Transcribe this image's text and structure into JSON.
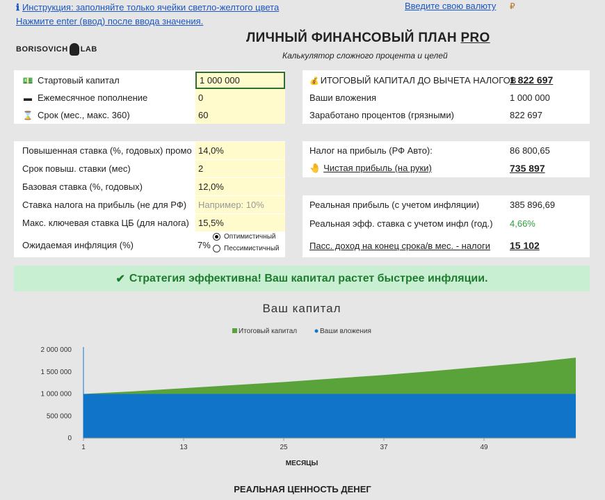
{
  "top_links": {
    "instruction": "Инструкция: заполняйте только ячейки светло-желтого цвета",
    "enter_hint": "Нажмите enter (ввод) после ввода значения.",
    "currency_link": "Введите свою валюту",
    "currency_symbol": "₽"
  },
  "logo": {
    "text_left": "BORISOVICH",
    "text_right": "LAB"
  },
  "header": {
    "title_main": "ЛИЧНЫЙ ФИНАНСОВЫЙ ПЛАН ",
    "title_pro": "PRO",
    "subtitle": "Калькулятор сложного процента и целей"
  },
  "inputs_top": [
    {
      "label": "Стартовый капитал",
      "value": "1 000 000",
      "icon": "money-icon"
    },
    {
      "label": "Ежемесячное пополнение",
      "value": "0",
      "icon": "card-icon"
    },
    {
      "label": "Срок (мес., макс. 360)",
      "value": "60",
      "icon": "hourglass-icon"
    }
  ],
  "inputs_mid": [
    {
      "label": "Повышенная ставка (%, годовых) промо",
      "value": "14,0%"
    },
    {
      "label": "Срок повыш. ставки (мес)",
      "value": "2"
    },
    {
      "label": "Базовая ставка (%, годовых)",
      "value": "12,0%"
    },
    {
      "label": "Ставка налога на прибыль (не для РФ)",
      "placeholder": "Например: 10%"
    },
    {
      "label": "Макс. ключевая ставка ЦБ (для налога)",
      "value": "15,5%"
    },
    {
      "label": "Ожидаемая инфляция (%)",
      "value": "7%"
    }
  ],
  "inflation_options": [
    "Оптимистичный",
    "Пессимистичный"
  ],
  "results_top": {
    "final_label": "ИТОГОВЫЙ КАПИТАЛ ДО ВЫЧЕТА НАЛОГОВ",
    "final_value": "1 822 697",
    "invest_label": "Ваши вложения",
    "invest_value": "1 000 000",
    "earned_label": "Заработано процентов (грязными)",
    "earned_value": "822 697"
  },
  "results_tax": {
    "tax_label": "Налог на прибыль (РФ Авто):",
    "tax_value": "86 800,65",
    "net_label": "Чистая прибыль (на руки)",
    "net_value": "735 897"
  },
  "results_real": {
    "real_profit_label": "Реальная прибыль (с учетом инфляции)",
    "real_profit_value": "385 896,69",
    "eff_rate_label": "Реальная эфф. ставка с учетом инфл (год.)",
    "eff_rate_value": "4,66%",
    "passive_label": "Пасс. доход на конец срока/в мес. - налоги",
    "passive_value": "15 102"
  },
  "banner_text": "Стратегия эффективна! Ваш капитал растет быстрее инфляции.",
  "bottom_title": "РЕАЛЬНАЯ ЦЕННОСТЬ ДЕНЕГ",
  "colors": {
    "final": "#5aa33a",
    "invest": "#1075c9",
    "good": "#2e9e3e",
    "yellow": "#fffbcc"
  },
  "chart_data": {
    "type": "area",
    "title": "Ваш капитал",
    "xlabel": "МЕСЯЦЫ",
    "ylabel": "",
    "x_ticks": [
      "1",
      "13",
      "25",
      "37",
      "49"
    ],
    "yticks": [
      "0",
      "500 000",
      "1 000 000",
      "1 500 000",
      "2 000 000"
    ],
    "ylim": [
      0,
      2000000
    ],
    "xlim": [
      1,
      60
    ],
    "legend_position": "top",
    "series": [
      {
        "name": "Итоговый капитал",
        "color": "#5aa33a",
        "x": [
          1,
          7,
          13,
          19,
          25,
          31,
          37,
          43,
          49,
          55,
          60
        ],
        "values": [
          1000000,
          1060000,
          1130000,
          1200000,
          1270000,
          1350000,
          1430000,
          1520000,
          1620000,
          1720000,
          1822697
        ]
      },
      {
        "name": "Ваши вложения",
        "color": "#1075c9",
        "x": [
          1,
          60
        ],
        "values": [
          1000000,
          1000000
        ]
      }
    ]
  }
}
